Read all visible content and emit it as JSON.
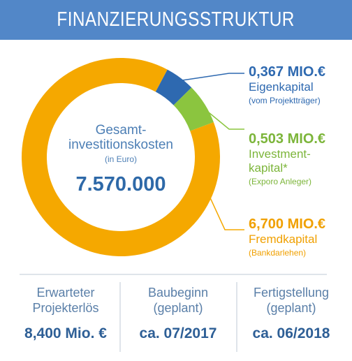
{
  "header": {
    "title": "FINANZIERUNGSSTRUKTUR"
  },
  "chart_data": {
    "type": "pie",
    "center": {
      "label_line1": "Gesamt-",
      "label_line2": "investitionskosten",
      "unit": "(in Euro)",
      "value": "7.570.000"
    },
    "slices": [
      {
        "amount": "0,367 MIO.€",
        "name_line1": "Eigenkapital",
        "name_line2": "",
        "note": "(vom Projektträger)",
        "value": 0.367,
        "color": "#2e69b0",
        "text_color": "#2e69b0"
      },
      {
        "amount": "0,503 MIO.€",
        "name_line1": "Investment-",
        "name_line2": "kapital*",
        "note": "(Exporo Anleger)",
        "value": 0.503,
        "color": "#8bc53f",
        "text_color": "#7cb53a"
      },
      {
        "amount": "6,700 MIO.€",
        "name_line1": "Fremdkapital",
        "name_line2": "",
        "note": "(Bankdarlehen)",
        "value": 6.7,
        "color": "#f5a800",
        "text_color": "#f0a000"
      }
    ]
  },
  "stats": [
    {
      "label_line1": "Erwarteter",
      "label_line2": "Projekterlös",
      "value": "8,400 Mio. €"
    },
    {
      "label_line1": "Baubeginn",
      "label_line2": "(geplant)",
      "value": "ca. 07/2017"
    },
    {
      "label_line1": "Fertigstellung",
      "label_line2": "(geplant)",
      "value": "ca. 06/2018"
    }
  ]
}
